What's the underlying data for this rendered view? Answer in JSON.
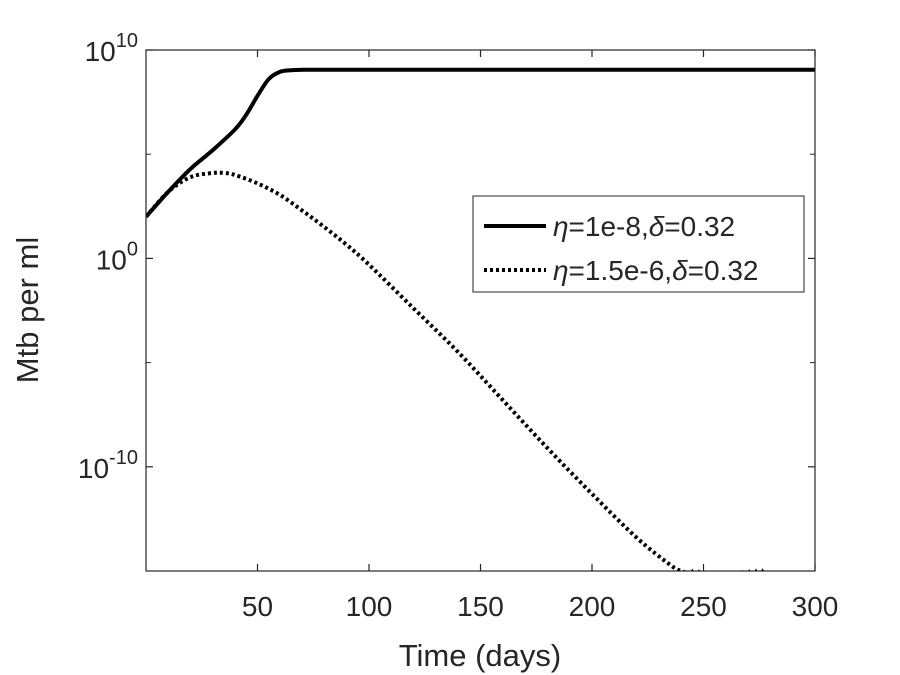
{
  "chart_data": {
    "type": "line",
    "title": "",
    "xlabel": "Time (days)",
    "ylabel": "Mtb per ml",
    "xlim": [
      0,
      300
    ],
    "ylim_log10": [
      -15,
      10
    ],
    "y_scale": "log",
    "grid": false,
    "x_ticks": [
      50,
      100,
      150,
      200,
      250,
      300
    ],
    "x_tick_labels": [
      "50",
      "100",
      "150",
      "200",
      "250",
      "300"
    ],
    "y_ticks_log10": [
      -10,
      0,
      10
    ],
    "y_tick_labels": [
      {
        "base": "10",
        "exp": "-10"
      },
      {
        "base": "10",
        "exp": "0"
      },
      {
        "base": "10",
        "exp": "10"
      }
    ],
    "legend_position": "right",
    "series": [
      {
        "name_parts": [
          "η",
          "=1e-8,",
          "δ",
          "=0.32"
        ],
        "style": "solid",
        "color": "#000000",
        "x": [
          0,
          10,
          20,
          30,
          40,
          45,
          50,
          55,
          60,
          65,
          70,
          80,
          100,
          150,
          200,
          250,
          300
        ],
        "log10_y": [
          2.0,
          3.2,
          4.3,
          5.2,
          6.2,
          6.9,
          7.8,
          8.6,
          8.95,
          9.03,
          9.05,
          9.05,
          9.05,
          9.05,
          9.05,
          9.05,
          9.05
        ]
      },
      {
        "name_parts": [
          "η",
          "=1.5e-6,",
          "δ",
          "=0.32"
        ],
        "style": "dotted",
        "color": "#000000",
        "x": [
          0,
          10,
          20,
          30,
          35,
          40,
          50,
          60,
          70,
          80,
          90,
          100,
          120,
          140,
          160,
          180,
          200,
          220,
          235,
          240,
          245,
          250,
          260,
          270,
          280,
          290,
          300
        ],
        "log10_y": [
          2.0,
          3.2,
          3.9,
          4.1,
          4.1,
          4.0,
          3.6,
          3.05,
          2.3,
          1.5,
          0.65,
          -0.3,
          -2.4,
          -4.5,
          -6.8,
          -9.1,
          -11.3,
          -13.4,
          -14.7,
          -15.0,
          -15.15,
          -15.25,
          -15.3,
          -15.3,
          -15.3,
          -15.3,
          -15.3
        ]
      }
    ]
  }
}
